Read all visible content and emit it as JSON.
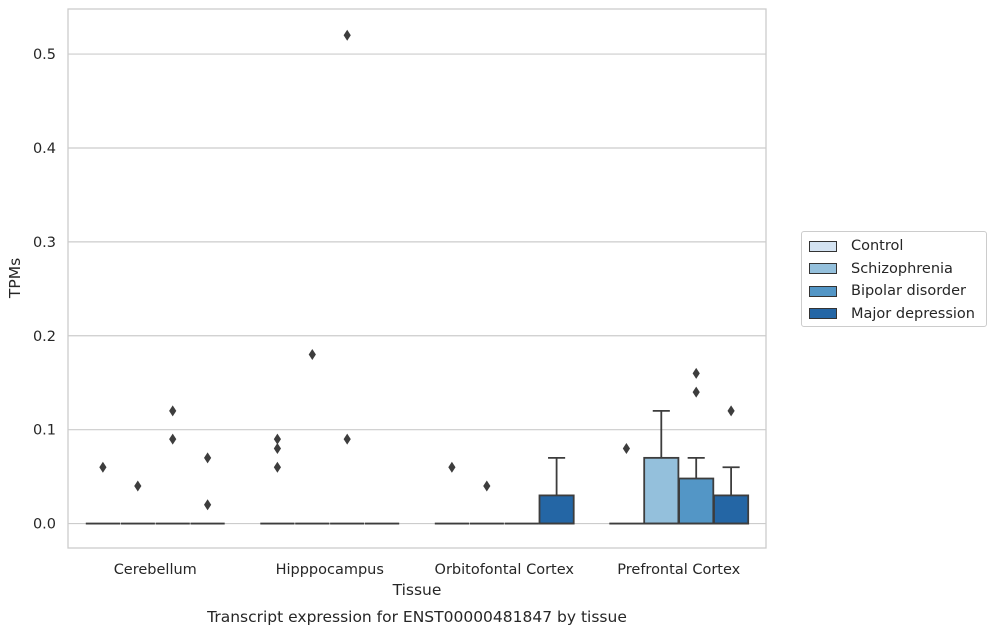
{
  "chart_data": {
    "type": "box",
    "title": "Transcript expression for ENST00000481847 by tissue",
    "xlabel": "Tissue",
    "ylabel": "TPMs",
    "ylim": [
      -0.026,
      0.548
    ],
    "yticks": [
      0.0,
      0.1,
      0.2,
      0.3,
      0.4,
      0.5
    ],
    "ytick_labels": [
      "0.0",
      "0.1",
      "0.2",
      "0.3",
      "0.4",
      "0.5"
    ],
    "grid": "horizontal",
    "legend_position": "right",
    "categories": [
      "Cerebellum",
      "Hipppocampus",
      "Orbitofontal Cortex",
      "Prefrontal Cortex"
    ],
    "series": [
      {
        "name": "Control",
        "color": "#d4e3f2",
        "boxes": [
          {
            "q1": 0,
            "median": 0,
            "q3": 0,
            "whisker_low": 0,
            "whisker_high": 0,
            "outliers": [
              0.06
            ]
          },
          {
            "q1": 0,
            "median": 0,
            "q3": 0,
            "whisker_low": 0,
            "whisker_high": 0,
            "outliers": [
              0.06,
              0.08,
              0.09
            ]
          },
          {
            "q1": 0,
            "median": 0,
            "q3": 0,
            "whisker_low": 0,
            "whisker_high": 0,
            "outliers": [
              0.06
            ]
          },
          {
            "q1": 0,
            "median": 0,
            "q3": 0,
            "whisker_low": 0,
            "whisker_high": 0,
            "outliers": [
              0.08
            ]
          }
        ]
      },
      {
        "name": "Schizophrenia",
        "color": "#94c0dc",
        "boxes": [
          {
            "q1": 0,
            "median": 0,
            "q3": 0,
            "whisker_low": 0,
            "whisker_high": 0,
            "outliers": [
              0.04
            ]
          },
          {
            "q1": 0,
            "median": 0,
            "q3": 0,
            "whisker_low": 0,
            "whisker_high": 0,
            "outliers": [
              0.18
            ]
          },
          {
            "q1": 0,
            "median": 0,
            "q3": 0,
            "whisker_low": 0,
            "whisker_high": 0,
            "outliers": [
              0.04
            ]
          },
          {
            "q1": 0,
            "median": 0,
            "q3": 0.07,
            "whisker_low": 0,
            "whisker_high": 0.12,
            "outliers": []
          }
        ]
      },
      {
        "name": "Bipolar disorder",
        "color": "#5396c6",
        "boxes": [
          {
            "q1": 0,
            "median": 0,
            "q3": 0,
            "whisker_low": 0,
            "whisker_high": 0,
            "outliers": [
              0.09,
              0.12
            ]
          },
          {
            "q1": 0,
            "median": 0,
            "q3": 0,
            "whisker_low": 0,
            "whisker_high": 0,
            "outliers": [
              0.09,
              0.52
            ]
          },
          {
            "q1": 0,
            "median": 0,
            "q3": 0,
            "whisker_low": 0,
            "whisker_high": 0,
            "outliers": []
          },
          {
            "q1": 0,
            "median": 0,
            "q3": 0.048,
            "whisker_low": 0,
            "whisker_high": 0.07,
            "outliers": [
              0.14,
              0.16
            ]
          }
        ]
      },
      {
        "name": "Major depression",
        "color": "#2466a5",
        "boxes": [
          {
            "q1": 0,
            "median": 0,
            "q3": 0,
            "whisker_low": 0,
            "whisker_high": 0,
            "outliers": [
              0.02,
              0.07
            ]
          },
          {
            "q1": 0,
            "median": 0,
            "q3": 0,
            "whisker_low": 0,
            "whisker_high": 0,
            "outliers": []
          },
          {
            "q1": 0,
            "median": 0,
            "q3": 0.03,
            "whisker_low": 0,
            "whisker_high": 0.07,
            "outliers": []
          },
          {
            "q1": 0,
            "median": 0,
            "q3": 0.03,
            "whisker_low": 0,
            "whisker_high": 0.06,
            "outliers": [
              0.12
            ]
          }
        ]
      }
    ]
  }
}
